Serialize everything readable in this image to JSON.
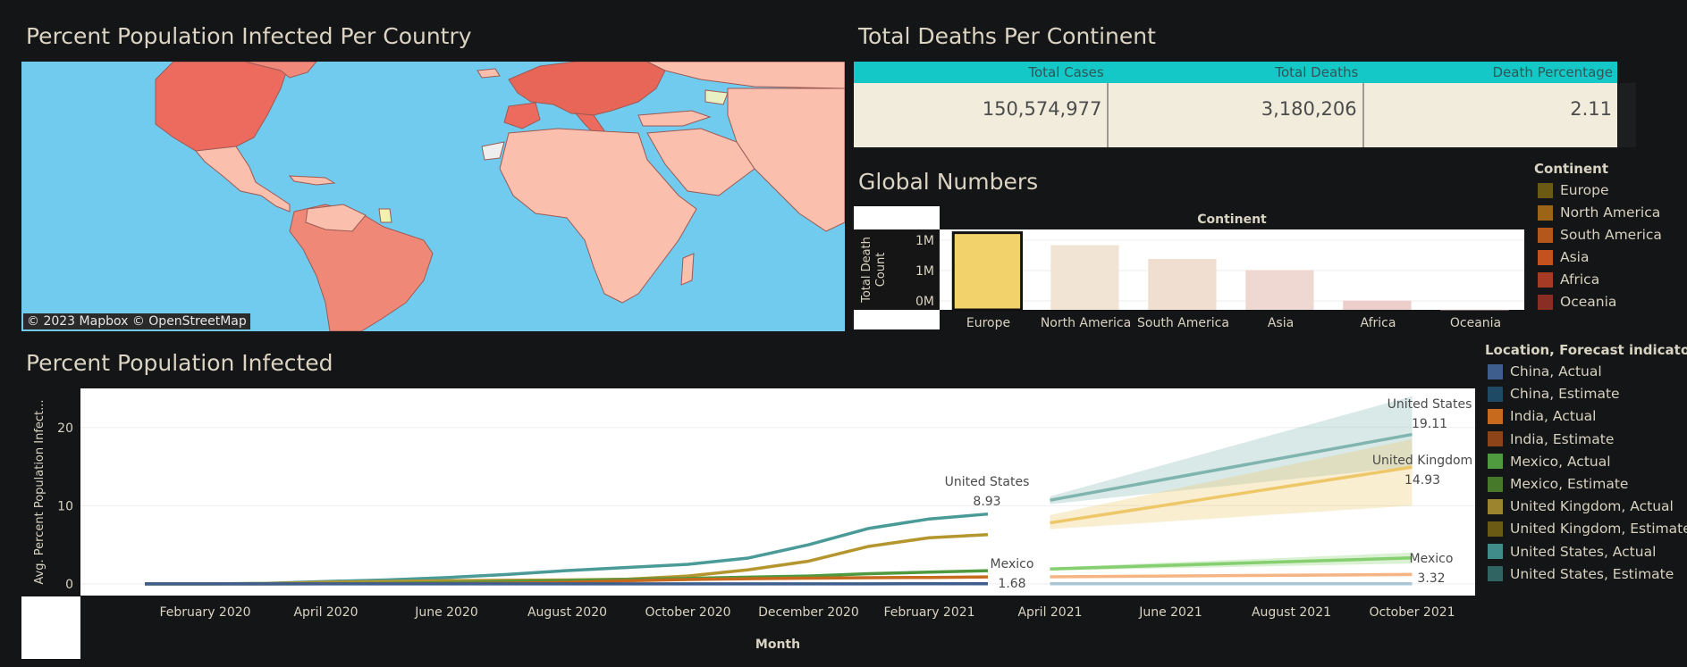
{
  "map_section": {
    "title": "Percent Population Infected Per Country",
    "attribution": "© 2023 Mapbox  © OpenStreetMap"
  },
  "deaths_section": {
    "title": "Total Deaths Per Continent",
    "columns": [
      "Total Cases",
      "Total Deaths",
      "Death Percentage"
    ],
    "values": [
      "150,574,977",
      "3,180,206",
      "2.11"
    ]
  },
  "global_section": {
    "title": "Global Numbers",
    "chart_data": {
      "type": "bar",
      "title": "Continent",
      "ylabel": "Total Death Count",
      "xlabel": "",
      "categories": [
        "Europe",
        "North America",
        "South America",
        "Asia",
        "Africa",
        "Oceania"
      ],
      "values": [
        1008000,
        846000,
        665000,
        520000,
        121000,
        1000
      ],
      "ylim": [
        0,
        1050000
      ],
      "ytick_labels": [
        "1M",
        "1M",
        "0M"
      ],
      "colors": [
        "#f2d36b",
        "#f2e4d5",
        "#f0ded1",
        "#efd8d1",
        "#eccfca",
        "#eac6c3"
      ]
    }
  },
  "continent_legend": {
    "title": "Continent",
    "items": [
      {
        "label": "Europe",
        "color": "#6b5a14"
      },
      {
        "label": "North America",
        "color": "#9c6416"
      },
      {
        "label": "South America",
        "color": "#b4571a"
      },
      {
        "label": "Asia",
        "color": "#c4521f"
      },
      {
        "label": "Africa",
        "color": "#a53a25"
      },
      {
        "label": "Oceania",
        "color": "#8a2e25"
      }
    ]
  },
  "infected_section": {
    "title": "Percent Population Infected",
    "chart_data": {
      "type": "line",
      "ylabel": "Avg. Percent Population Infect...",
      "xlabel": "Month",
      "ylim": [
        -1.5,
        25
      ],
      "yticks": [
        0,
        10,
        20
      ],
      "x_ticks": [
        "February 2020",
        "April 2020",
        "June 2020",
        "August 2020",
        "October 2020",
        "December 2020",
        "February 2021",
        "April 2021",
        "June 2021",
        "August 2021",
        "October 2021"
      ],
      "actual_x": [
        "Jan 2020",
        "Feb 2020",
        "Mar 2020",
        "Apr 2020",
        "May 2020",
        "Jun 2020",
        "Jul 2020",
        "Aug 2020",
        "Sep 2020",
        "Oct 2020",
        "Nov 2020",
        "Dec 2020",
        "Jan 2021",
        "Feb 2021",
        "Mar 2021"
      ],
      "estimate_x": [
        "Apr 2021",
        "Oct 2021"
      ],
      "series": [
        {
          "name": "United States, Actual",
          "color": "#4a9a98",
          "values": [
            0,
            0,
            0.05,
            0.3,
            0.5,
            0.8,
            1.2,
            1.7,
            2.1,
            2.5,
            3.3,
            5.0,
            7.1,
            8.3,
            8.93
          ]
        },
        {
          "name": "United Kingdom, Actual",
          "color": "#b5962e",
          "values": [
            0,
            0,
            0.04,
            0.2,
            0.3,
            0.4,
            0.45,
            0.5,
            0.6,
            1.0,
            1.8,
            2.9,
            4.8,
            5.9,
            6.3
          ]
        },
        {
          "name": "Mexico, Actual",
          "color": "#4f9a3e",
          "values": [
            0,
            0,
            0,
            0.02,
            0.05,
            0.15,
            0.3,
            0.42,
            0.55,
            0.7,
            0.85,
            1.0,
            1.3,
            1.5,
            1.68
          ]
        },
        {
          "name": "India, Actual",
          "color": "#c86a1e",
          "values": [
            0,
            0,
            0,
            0.01,
            0.02,
            0.04,
            0.09,
            0.2,
            0.4,
            0.55,
            0.65,
            0.73,
            0.78,
            0.82,
            0.88
          ]
        },
        {
          "name": "China, Actual",
          "color": "#3e5e8e",
          "values": [
            0.005,
            0.005,
            0.006,
            0.006,
            0.006,
            0.006,
            0.006,
            0.006,
            0.006,
            0.006,
            0.006,
            0.006,
            0.006,
            0.007,
            0.007
          ]
        },
        {
          "name": "United States, Estimate",
          "color": "#7fb5ae",
          "values": [
            10.7,
            19.11
          ],
          "band": [
            [
              10.2,
              11.2
            ],
            [
              15.0,
              24.0
            ]
          ]
        },
        {
          "name": "United Kingdom, Estimate",
          "color": "#eec768",
          "values": [
            7.8,
            14.93
          ],
          "band": [
            [
              7.0,
              8.8
            ],
            [
              10.0,
              18.5
            ]
          ]
        },
        {
          "name": "Mexico, Estimate",
          "color": "#86cf70",
          "values": [
            1.9,
            3.32
          ],
          "band": [
            [
              1.7,
              2.1
            ],
            [
              2.6,
              4.0
            ]
          ]
        },
        {
          "name": "India, Estimate",
          "color": "#f5b481",
          "values": [
            0.9,
            1.2
          ],
          "band": [
            [
              0.8,
              1.0
            ],
            [
              1.0,
              1.4
            ]
          ]
        },
        {
          "name": "China, Estimate",
          "color": "#a9c5d6",
          "values": [
            0.007,
            0.008
          ],
          "band": [
            [
              0.005,
              0.01
            ],
            [
              0.005,
              0.012
            ]
          ]
        }
      ],
      "annotations": [
        {
          "label": "United States",
          "value": "8.93"
        },
        {
          "label": "Mexico",
          "value": "1.68"
        },
        {
          "label": "United States",
          "value": "19.11"
        },
        {
          "label": "United Kingdom",
          "value": "14.93"
        },
        {
          "label": "Mexico",
          "value": "3.32"
        }
      ]
    }
  },
  "location_legend": {
    "title": "Location, Forecast indicator",
    "items": [
      {
        "label": "China, Actual",
        "color": "#3e5e8e"
      },
      {
        "label": "China, Estimate",
        "color": "#1f4a66"
      },
      {
        "label": "India, Actual",
        "color": "#c86a1e"
      },
      {
        "label": "India, Estimate",
        "color": "#8c4418"
      },
      {
        "label": "Mexico, Actual",
        "color": "#4f9a3e"
      },
      {
        "label": "Mexico, Estimate",
        "color": "#467a2a"
      },
      {
        "label": "United Kingdom, Actual",
        "color": "#9c842e"
      },
      {
        "label": "United Kingdom, Estimate",
        "color": "#6b5a14"
      },
      {
        "label": "United States, Actual",
        "color": "#3f8c8a"
      },
      {
        "label": "United States, Estimate",
        "color": "#2f6462"
      }
    ]
  }
}
